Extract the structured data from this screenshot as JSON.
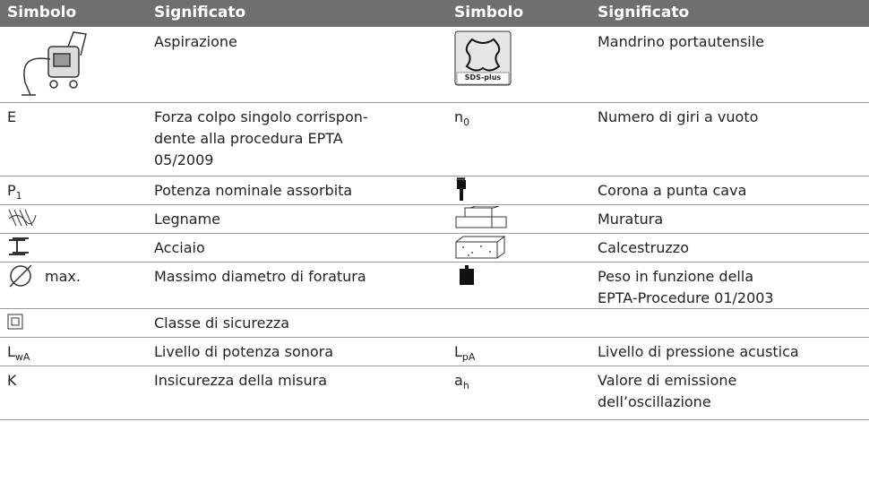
{
  "table": {
    "header": [
      "Simbolo",
      "Significato",
      "Simbolo",
      "Significato"
    ],
    "rows": [
      {
        "left": {
          "meaning": [
            "Aspirazione"
          ]
        },
        "right": {
          "icon_label": "SDS-plus",
          "meaning": [
            "Mandrino portautensile"
          ]
        }
      },
      {
        "left": {
          "symbol": "E",
          "meaning": [
            "Forza colpo singolo corrispon-",
            "dente alla procedura EPTA",
            "05/2009"
          ]
        },
        "right": {
          "symbol": "n",
          "sub": "0",
          "meaning": [
            "Numero di giri a vuoto"
          ]
        }
      },
      {
        "left": {
          "symbol": "P",
          "sub": "1",
          "meaning": [
            "Potenza nominale assorbita"
          ]
        },
        "right": {
          "meaning": [
            "Corona a punta cava"
          ]
        }
      },
      {
        "left": {
          "meaning": [
            "Legname"
          ]
        },
        "right": {
          "meaning": [
            "Muratura"
          ]
        }
      },
      {
        "left": {
          "meaning": [
            "Acciaio"
          ]
        },
        "right": {
          "meaning": [
            "Calcestruzzo"
          ]
        }
      },
      {
        "left": {
          "symbol": "max.",
          "meaning": [
            "Massimo diametro di foratura"
          ]
        },
        "right": {
          "meaning": [
            "Peso in funzione della",
            "EPTA-Procedure 01/2003"
          ]
        }
      },
      {
        "left": {
          "meaning": [
            "Classe di sicurezza"
          ]
        }
      },
      {
        "left": {
          "symbol": "L",
          "sub": "wA",
          "meaning": [
            "Livello di potenza sonora"
          ]
        },
        "right": {
          "symbol": "L",
          "sub": "pA",
          "meaning": [
            "Livello di pressione acustica"
          ]
        }
      },
      {
        "left": {
          "symbol": "K",
          "meaning": [
            "Insicurezza della misura"
          ]
        },
        "right": {
          "symbol": "a",
          "sub": "h",
          "meaning": [
            "Valore di emissione",
            "dell’oscillazione"
          ]
        }
      }
    ]
  }
}
